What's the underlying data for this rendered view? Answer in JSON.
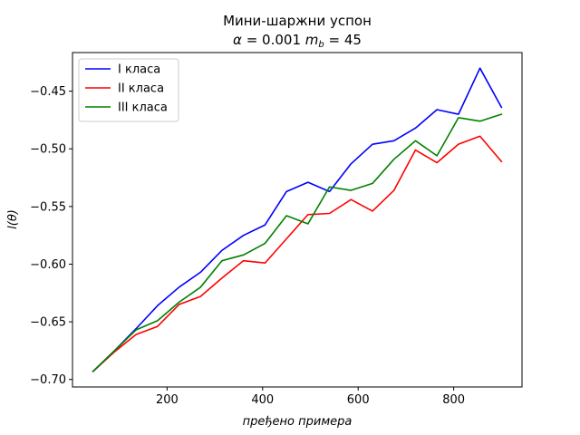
{
  "chart_data": {
    "type": "line",
    "title": "Мини-шаржни успон",
    "subtitle": {
      "alpha_symbol": "α",
      "alpha_eq": " = 0.001 ",
      "m_symbol": "m",
      "m_sub": "b",
      "m_eq": " = 45"
    },
    "xlabel": "пређено примера",
    "ylabel": "l(θ)",
    "xlim": [
      2,
      943
    ],
    "ylim": [
      -0.7065,
      -0.4165
    ],
    "xticks": [
      200,
      400,
      600,
      800
    ],
    "yticks": [
      -0.7,
      -0.65,
      -0.6,
      -0.55,
      -0.5,
      -0.45
    ],
    "ytick_labels": [
      "−0.70",
      "−0.65",
      "−0.60",
      "−0.55",
      "−0.50",
      "−0.45"
    ],
    "grid": false,
    "legend_position": "top-left",
    "x": [
      45,
      90,
      135,
      180,
      225,
      270,
      315,
      360,
      405,
      450,
      495,
      540,
      585,
      630,
      675,
      720,
      765,
      810,
      855,
      900
    ],
    "series": [
      {
        "name": "I класа",
        "color": "#0000ff",
        "values": [
          -0.693,
          -0.675,
          -0.656,
          -0.636,
          -0.62,
          -0.607,
          -0.588,
          -0.575,
          -0.566,
          -0.537,
          -0.529,
          -0.537,
          -0.513,
          -0.496,
          -0.493,
          -0.482,
          -0.466,
          -0.47,
          -0.43,
          -0.464
        ]
      },
      {
        "name": "II класа",
        "color": "#ff0000",
        "values": [
          -0.693,
          -0.676,
          -0.661,
          -0.654,
          -0.635,
          -0.628,
          -0.612,
          -0.597,
          -0.599,
          -0.578,
          -0.557,
          -0.556,
          -0.544,
          -0.554,
          -0.536,
          -0.501,
          -0.512,
          -0.496,
          -0.489,
          -0.511
        ]
      },
      {
        "name": "III класа",
        "color": "#008000",
        "values": [
          -0.693,
          -0.675,
          -0.657,
          -0.649,
          -0.633,
          -0.62,
          -0.597,
          -0.592,
          -0.582,
          -0.558,
          -0.565,
          -0.533,
          -0.536,
          -0.53,
          -0.509,
          -0.493,
          -0.506,
          -0.473,
          -0.476,
          -0.47
        ]
      }
    ]
  }
}
